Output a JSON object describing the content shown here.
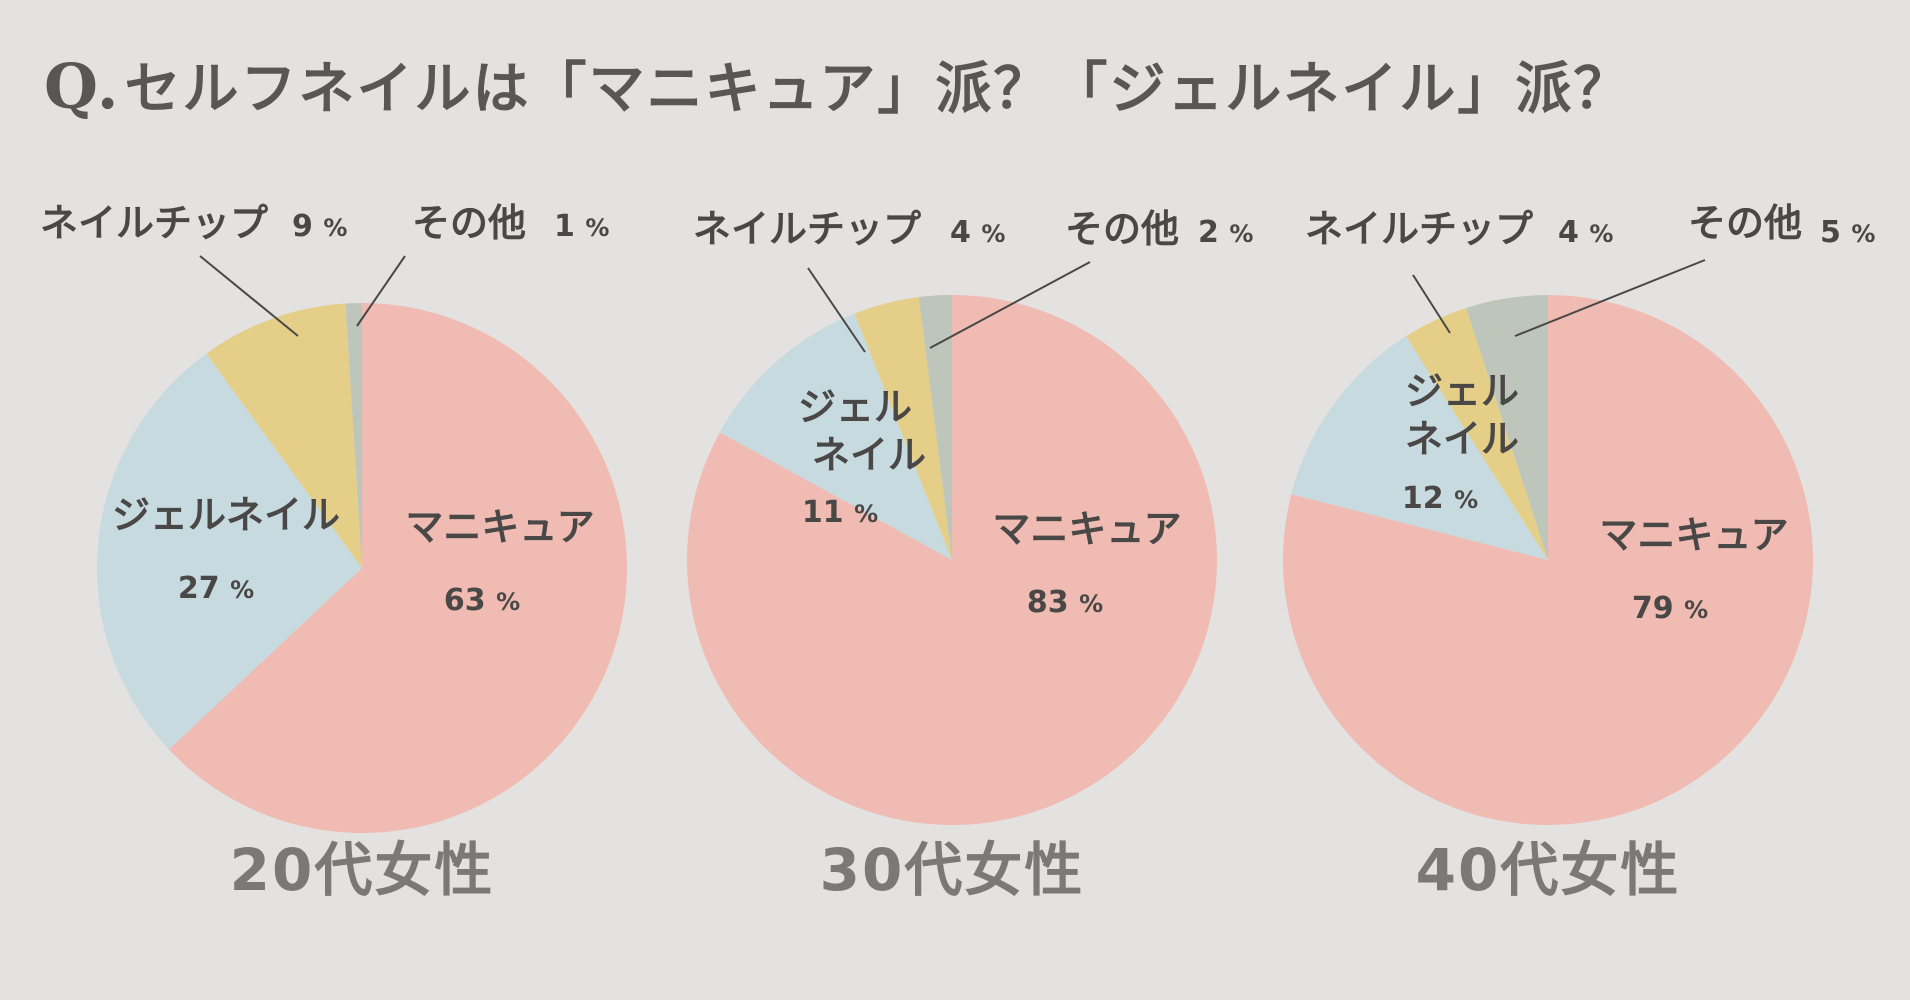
{
  "title": {
    "prefix": "Q.",
    "text": "セルフネイルは「マニキュア」派？「ジェルネイル」派？"
  },
  "colors": {
    "マニキュア": "#efbbb2",
    "ジェルネイル": "#c6dadf",
    "ネイルチップ": "#e5cf88",
    "その他": "#bec6bb"
  },
  "chart_data": [
    {
      "type": "pie",
      "title": "20代女性",
      "slices": [
        {
          "label": "マニキュア",
          "value": 63
        },
        {
          "label": "ジェルネイル",
          "value": 27
        },
        {
          "label": "ネイルチップ",
          "value": 9
        },
        {
          "label": "その他",
          "value": 1
        }
      ],
      "unit": "%"
    },
    {
      "type": "pie",
      "title": "30代女性",
      "slices": [
        {
          "label": "マニキュア",
          "value": 83
        },
        {
          "label": "ジェルネイル",
          "value": 11
        },
        {
          "label": "ネイルチップ",
          "value": 4
        },
        {
          "label": "その他",
          "value": 2
        }
      ],
      "unit": "%"
    },
    {
      "type": "pie",
      "title": "40代女性",
      "slices": [
        {
          "label": "マニキュア",
          "value": 79
        },
        {
          "label": "ジェルネイル",
          "value": 12
        },
        {
          "label": "ネイルチップ",
          "value": 4
        },
        {
          "label": "その他",
          "value": 5
        }
      ],
      "unit": "%"
    }
  ]
}
